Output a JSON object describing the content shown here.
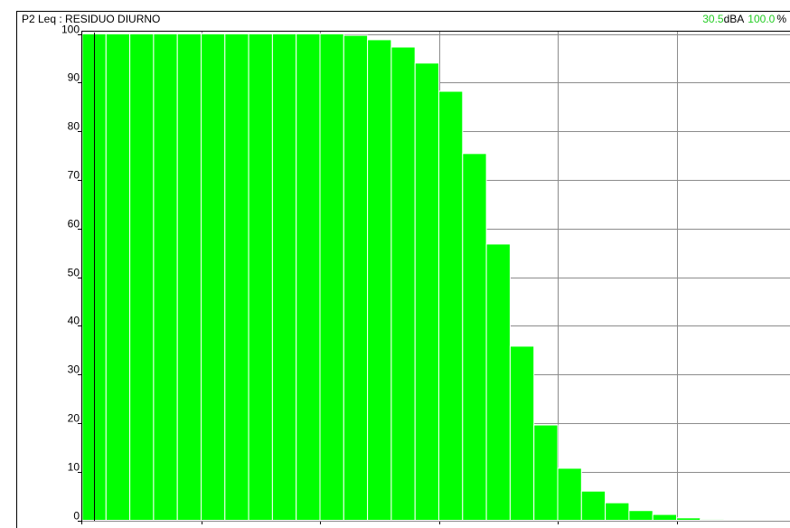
{
  "chart_data": {
    "type": "bar",
    "title": "P2  Leq : RESIDUO DIURNO",
    "annotations": [
      "30.5",
      "dBA",
      "100.0",
      "%"
    ],
    "categories": [
      null,
      null,
      null,
      null,
      null,
      null,
      null,
      null,
      null,
      null,
      null,
      null,
      null,
      null,
      null,
      null,
      null,
      null,
      null,
      null,
      null,
      null,
      null,
      null,
      null,
      null,
      null,
      null
    ],
    "values": [
      100,
      100,
      100,
      100,
      100,
      100,
      100,
      100,
      100,
      100,
      100,
      99.7,
      98.8,
      97.3,
      94.0,
      88.2,
      75.4,
      56.8,
      35.8,
      19.6,
      10.7,
      6.0,
      3.6,
      2.0,
      1.2,
      0.5,
      0.2,
      0
    ],
    "color": "#00ff00",
    "ylim": [
      0,
      100
    ],
    "yticks": [
      0,
      10,
      20,
      30,
      40,
      50,
      60,
      70,
      80,
      90,
      100
    ],
    "grid": true
  }
}
